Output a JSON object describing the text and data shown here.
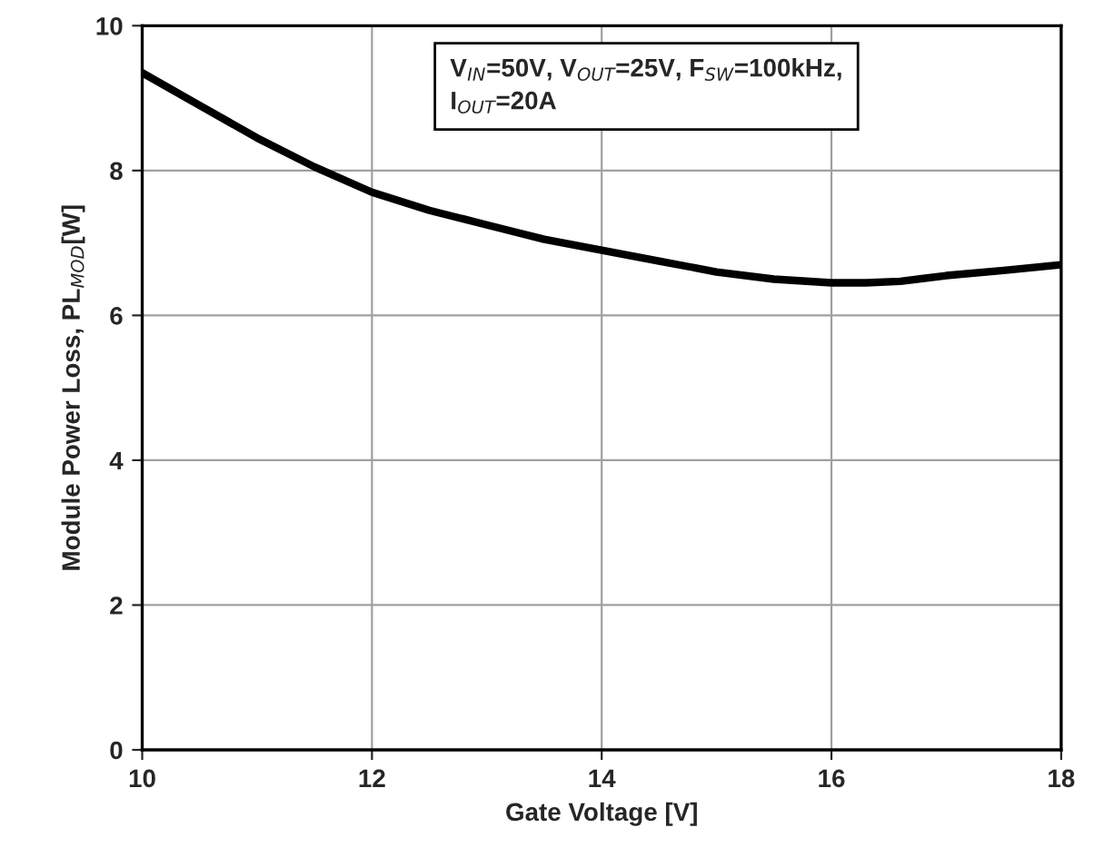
{
  "chart_data": {
    "type": "line",
    "xlabel": "Gate Voltage [V]",
    "ylabel": "Module Power Loss, PL$_{MOD}$[W]",
    "x": [
      10,
      10.5,
      11,
      11.5,
      12,
      12.5,
      13,
      13.5,
      14,
      14.5,
      15,
      15.5,
      16,
      16.3,
      16.6,
      17,
      17.5,
      18
    ],
    "series": [
      {
        "color": "#000000",
        "values": [
          9.35,
          8.9,
          8.45,
          8.05,
          7.7,
          7.45,
          7.25,
          7.05,
          6.9,
          6.75,
          6.6,
          6.5,
          6.45,
          6.45,
          6.47,
          6.55,
          6.62,
          6.7
        ]
      }
    ],
    "xlim": [
      10,
      18
    ],
    "xticks": [
      10,
      12,
      14,
      16,
      18
    ],
    "ylim": [
      0,
      10
    ],
    "yticks": [
      0,
      2,
      4,
      6,
      8,
      10
    ],
    "grid": true,
    "marker": "none",
    "line_style": "solid",
    "annotations": [
      "V$_{IN}$=50V, V$_{OUT}$=25V, F$_{SW}$=100kHz,\nI$_{OUT}$=20A"
    ]
  }
}
